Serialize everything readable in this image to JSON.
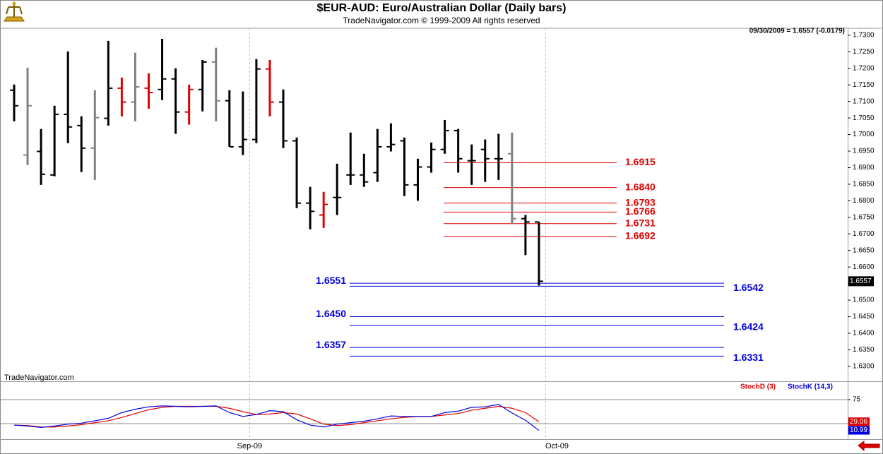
{
  "chart_data": {
    "type": "ohlc",
    "title": "$EUR-AUD:  Euro/Australian Dollar  (Daily bars)",
    "subtitle": "TradeNavigator.com © 1999-2009 All rights reserved",
    "status": "09/30/2009 = 1.6557 (-0.0179)",
    "watermark": "TradeNavigator.com",
    "last_price": {
      "value": 1.6557,
      "label": "1.6557"
    },
    "categories": [
      null,
      null,
      null,
      null,
      null,
      null,
      null,
      null,
      null,
      null,
      null,
      null,
      null,
      null,
      null,
      null,
      null,
      null,
      "Sep-09",
      null,
      null,
      null,
      null,
      null,
      null,
      null,
      null,
      null,
      null,
      null,
      null,
      null,
      null,
      null,
      null,
      null,
      null,
      null,
      null,
      null
    ],
    "end_label": "Oct-09",
    "open": [
      1.7134,
      1.6938,
      1.6949,
      1.6878,
      1.7061,
      1.7027,
      1.6959,
      1.7049,
      1.714,
      1.7098,
      1.714,
      1.7136,
      1.7168,
      1.7068,
      1.7136,
      1.7219,
      1.7102,
      1.6963,
      1.6985,
      1.7198,
      1.7098,
      1.6981,
      1.6793,
      1.6757,
      1.681,
      1.6878,
      1.6878,
      1.6885,
      1.6963,
      1.6981,
      1.6848,
      1.6902,
      1.6955,
      1.7012,
      1.6921,
      1.6955,
      1.6927,
      1.6942,
      1.6746,
      1.6736
    ],
    "high": [
      1.7151,
      1.7202,
      1.7017,
      1.7087,
      1.7251,
      1.7055,
      1.7134,
      1.7283,
      1.7172,
      1.7247,
      1.7185,
      1.7289,
      1.72,
      1.7151,
      1.7225,
      1.7262,
      1.7134,
      1.713,
      1.7228,
      1.7225,
      1.7136,
      1.6991,
      1.6842,
      1.6827,
      1.6912,
      1.7006,
      1.6942,
      1.7017,
      1.7034,
      1.6991,
      1.6927,
      1.6976,
      1.7044,
      1.7017,
      1.697,
      1.6985,
      1.7002,
      1.7006,
      1.6757,
      1.6736
    ],
    "low": [
      1.704,
      1.6908,
      1.6848,
      1.6874,
      1.6974,
      1.6887,
      1.6863,
      1.7027,
      1.7055,
      1.704,
      1.7078,
      1.7104,
      1.7002,
      1.703,
      1.707,
      1.704,
      1.6963,
      1.6938,
      1.6974,
      1.7055,
      1.6959,
      1.6778,
      1.6714,
      1.6718,
      1.6757,
      1.6848,
      1.6842,
      1.6857,
      1.6949,
      1.6814,
      1.68,
      1.6885,
      1.6942,
      1.6885,
      1.6848,
      1.6857,
      1.6863,
      1.6729,
      1.6636,
      1.6544
    ],
    "close": [
      1.7087,
      1.7087,
      1.688,
      1.7061,
      1.7023,
      1.6959,
      1.7051,
      1.714,
      1.7098,
      1.7144,
      1.7127,
      1.7168,
      1.7068,
      1.7136,
      1.7219,
      1.7102,
      1.6963,
      1.6985,
      1.7198,
      1.7098,
      1.6981,
      1.6793,
      1.6768,
      1.6789,
      1.681,
      1.6878,
      1.6857,
      1.6963,
      1.697,
      1.6848,
      1.6902,
      1.6955,
      1.7012,
      1.6927,
      1.6921,
      1.6927,
      1.6927,
      1.6746,
      1.6736,
      1.6557
    ],
    "colors": [
      "#000000",
      "#808080",
      "#000000",
      "#000000",
      "#000000",
      "#000000",
      "#808080",
      "#000000",
      "#e00000",
      "#808080",
      "#e00000",
      "#000000",
      "#000000",
      "#e00000",
      "#000000",
      "#808080",
      "#000000",
      "#000000",
      "#000000",
      "#e00000",
      "#000000",
      "#000000",
      "#000000",
      "#e00000",
      "#000000",
      "#000000",
      "#000000",
      "#000000",
      "#000000",
      "#000000",
      "#000000",
      "#000000",
      "#000000",
      "#000000",
      "#000000",
      "#000000",
      "#000000",
      "#808080",
      "#000000",
      "#000000"
    ],
    "ylim": [
      1.6255,
      1.7321
    ],
    "yticks": [
      {
        "value": 1.63,
        "label": "1.6300"
      },
      {
        "value": 1.635,
        "label": "1.6350"
      },
      {
        "value": 1.64,
        "label": "1.6400"
      },
      {
        "value": 1.645,
        "label": "1.6450"
      },
      {
        "value": 1.65,
        "label": "1.6500"
      },
      {
        "value": 1.655,
        "label": "1.6550"
      },
      {
        "value": 1.66,
        "label": "1.6600"
      },
      {
        "value": 1.665,
        "label": "1.6650"
      },
      {
        "value": 1.67,
        "label": "1.6700"
      },
      {
        "value": 1.675,
        "label": "1.6750"
      },
      {
        "value": 1.68,
        "label": "1.6800"
      },
      {
        "value": 1.685,
        "label": "1.6850"
      },
      {
        "value": 1.69,
        "label": "1.6900"
      },
      {
        "value": 1.695,
        "label": "1.6950"
      },
      {
        "value": 1.7,
        "label": "1.7000"
      },
      {
        "value": 1.705,
        "label": "1.7050"
      },
      {
        "value": 1.71,
        "label": "1.7100"
      },
      {
        "value": 1.715,
        "label": "1.7150"
      },
      {
        "value": 1.72,
        "label": "1.7200"
      },
      {
        "value": 1.725,
        "label": "1.7250"
      },
      {
        "value": 1.73,
        "label": "1.7300"
      }
    ],
    "levels": [
      {
        "value": 1.6915,
        "label": "1.6915",
        "side": "right",
        "color": "#e00000"
      },
      {
        "value": 1.684,
        "label": "1.6840",
        "side": "right",
        "color": "#e00000"
      },
      {
        "value": 1.6793,
        "label": "1.6793",
        "side": "right",
        "color": "#e00000"
      },
      {
        "value": 1.6766,
        "label": "1.6766",
        "side": "right",
        "color": "#e00000"
      },
      {
        "value": 1.6731,
        "label": "1.6731",
        "side": "right",
        "color": "#e00000"
      },
      {
        "value": 1.6692,
        "label": "1.6692",
        "side": "right",
        "color": "#e00000"
      },
      {
        "value": 1.6551,
        "label": "1.6551",
        "side": "left",
        "color": "#0000e0"
      },
      {
        "value": 1.6542,
        "label": "1.6542",
        "side": "right",
        "color": "#0000e0"
      },
      {
        "value": 1.645,
        "label": "1.6450",
        "side": "left",
        "color": "#0000e0"
      },
      {
        "value": 1.6424,
        "label": "1.6424",
        "side": "right",
        "color": "#0000e0"
      },
      {
        "value": 1.6357,
        "label": "1.6357",
        "side": "left",
        "color": "#0000e0"
      },
      {
        "value": 1.6331,
        "label": "1.6331",
        "side": "right",
        "color": "#0000e0"
      }
    ],
    "indicator": {
      "ylim": [
        0,
        100
      ],
      "yticks": [
        75
      ],
      "ref_lines": [
        75,
        25
      ],
      "series": [
        {
          "name": "StochD (3)",
          "color": "#e00000",
          "values": [
            22,
            21,
            18,
            18,
            20,
            23,
            27,
            31,
            38,
            46,
            54,
            59,
            61,
            61,
            61,
            61,
            57,
            50,
            44,
            45,
            48,
            45,
            35,
            24,
            21,
            23,
            27,
            31,
            35,
            38,
            40,
            40,
            43,
            46,
            53,
            57,
            61,
            57,
            48,
            29.06
          ]
        },
        {
          "name": "StochK (14,3)",
          "color": "#0000e0",
          "values": [
            22,
            20,
            17,
            20,
            24,
            26,
            31,
            36,
            48,
            55,
            60,
            62,
            61,
            60,
            61,
            62,
            48,
            40,
            44,
            52,
            50,
            33,
            22,
            18,
            24,
            27,
            30,
            35,
            41,
            40,
            40,
            40,
            48,
            51,
            59,
            60,
            65,
            47,
            32,
            10.99
          ]
        }
      ]
    }
  }
}
